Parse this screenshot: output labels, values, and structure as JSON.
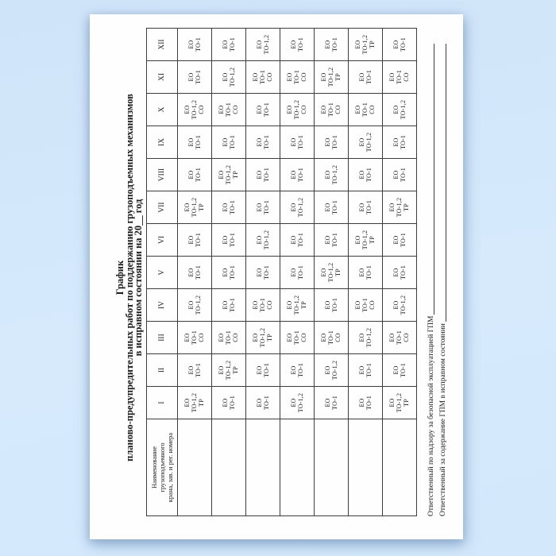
{
  "title": {
    "line1": "График",
    "line2": "планово-предупредительных работ по поддержанию грузоподъемных механизмов",
    "line3": "в исправном состоянии на 20__ год"
  },
  "table": {
    "name_header": "Наименование\nгрузоподъемного\nкрана, зав. и рег. номера",
    "months": [
      "I",
      "II",
      "III",
      "IV",
      "V",
      "VI",
      "VII",
      "VIII",
      "IX",
      "X",
      "XI",
      "XII"
    ],
    "rows": [
      {
        "name": "",
        "cells": [
          "ЕО\nТО-1,2\nТР",
          "ЕО\nТО-1",
          "ЕО\nТО-1\nСО",
          "ЕО\nТО-1,2",
          "ЕО\nТО-1",
          "ЕО\nТО-1",
          "ЕО\nТО-1,2\nТР",
          "ЕО\nТО-1",
          "ЕО\nТО-1",
          "ЕО\nТО-1,2\nСО",
          "ЕО\nТО-1",
          "ЕО\nТО-1"
        ]
      },
      {
        "name": "",
        "cells": [
          "ЕО\nТО-1",
          "ЕО\nТО-1,2\nТР",
          "ЕО\nТО-1\nСО",
          "ЕО\nТО-1",
          "ЕО\nТО-1",
          "ЕО\nТО-1",
          "ЕО\nТО-1",
          "ЕО\nТО-1,2\nТР",
          "ЕО\nТО-1",
          "ЕО\nТО-1\nСО",
          "ЕО\nТО-1,2",
          "ЕО\nТО-1"
        ]
      },
      {
        "name": "",
        "cells": [
          "ЕО\nТО-1",
          "ЕО\nТО-1",
          "ЕО\nТО-1,2\nТР",
          "ЕО\nТО-1\nСО",
          "ЕО\nТО-1",
          "ЕО\nТО-1,2",
          "ЕО\nТО-1",
          "ЕО\nТО-1",
          "ЕО\nТО-1",
          "ЕО\nТО-1",
          "ЕО\nТО-1\nСО",
          "ЕО\nТО-1,2"
        ]
      },
      {
        "name": "",
        "cells": [
          "ЕО\nТО-1,2",
          "ЕО\nТО-1",
          "ЕО\nТО-1\nСО",
          "ЕО\nТО-1,2\nТР",
          "ЕО\nТО-1",
          "ЕО\nТО-1",
          "ЕО\nТО-1,2",
          "ЕО\nТО-1",
          "ЕО\nТО-1",
          "ЕО\nТО-1,2\nСО",
          "ЕО\nТО-1\nСО",
          "ЕО\nТО-1"
        ]
      },
      {
        "name": "",
        "cells": [
          "ЕО\nТО-1",
          "ЕО\nТО-1,2",
          "ЕО\nТО-1\nСО",
          "ЕО\nТО-1",
          "ЕО\nТО-1,2\nТР",
          "ЕО\nТО-1",
          "ЕО\nТО-1",
          "ЕО\nТО-1,2",
          "ЕО\nТО-1",
          "ЕО\nТО-1\nСО",
          "ЕО\nТО-1,2\nТР",
          "ЕО\nТО-1"
        ]
      },
      {
        "name": "",
        "cells": [
          "ЕО\nТО-1",
          "ЕО\nТО-1",
          "ЕО\nТО-1,2",
          "ЕО\nТО-1\nСО",
          "ЕО\nТО-1",
          "ЕО\nТО-1,2\nТР",
          "ЕО\nТО-1",
          "ЕО\nТО-1",
          "ЕО\nТО-1,2",
          "ЕО\nТО-1\nСО",
          "ЕО\nТО-1",
          "ЕО\nТО-1,2\nТР"
        ]
      },
      {
        "name": "",
        "cells": [
          "ЕО\nТО-1,2\nТР",
          "ЕО\nТО-1",
          "ЕО\nТО-1\nСО",
          "ЕО\nТО-1,2",
          "ЕО\nТО-1",
          "ЕО\nТО-1",
          "ЕО\nТО-1,2\nТР",
          "ЕО\nТО-1",
          "ЕО\nТО-1",
          "ЕО\nТО-1,2",
          "ЕО\nТО-1\nСО",
          "ЕО\nТО-1"
        ]
      }
    ]
  },
  "signatures": [
    {
      "label": "Ответственный по надзору за безопасной эксплуатацией ГПМ"
    },
    {
      "label": "Ответственный за содержание ГПМ в исправном состоянии"
    }
  ],
  "colors": {
    "background": "#d4e8fb",
    "paper": "#fefefe",
    "border": "#3d3d3d",
    "text": "#1c1c1c"
  }
}
